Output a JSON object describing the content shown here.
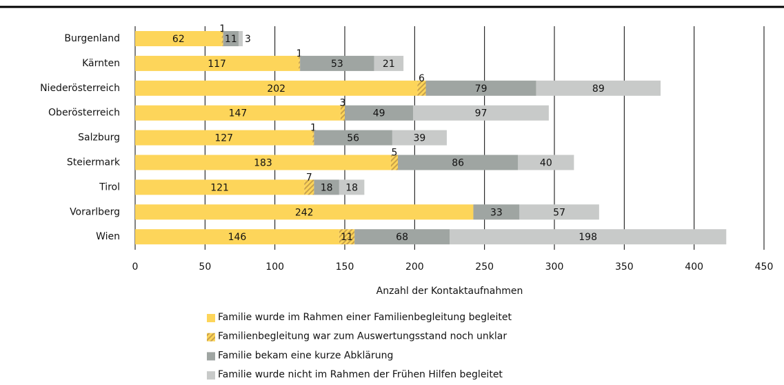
{
  "chart_data": {
    "type": "stacked-bar-horizontal",
    "x_label": "Anzahl der Kontaktaufnahmen",
    "categories": [
      "Burgenland",
      "Kärnten",
      "Niederösterreich",
      "Oberösterreich",
      "Salzburg",
      "Steiermark",
      "Tirol",
      "Vorarlberg",
      "Wien"
    ],
    "series": [
      {
        "name": "Familie wurde im Rahmen einer Familienbegleitung begleitet",
        "color": "#fdd55a",
        "values": [
          62,
          117,
          202,
          147,
          127,
          183,
          121,
          242,
          146
        ]
      },
      {
        "name": "Familienbegleitung war zum Auswertungsstand noch unklar",
        "color": "#fdd55a",
        "hatch": true,
        "values": [
          1,
          1,
          6,
          3,
          1,
          5,
          7,
          null,
          11
        ]
      },
      {
        "name": "Familie bekam eine kurze Abklärung",
        "color": "#9fa5a2",
        "values": [
          11,
          53,
          79,
          49,
          56,
          86,
          18,
          33,
          68
        ]
      },
      {
        "name": "Familie wurde nicht im Rahmen der Frühen Hilfen begleitet",
        "color": "#c8cac9",
        "values": [
          3,
          21,
          89,
          97,
          39,
          40,
          18,
          57,
          198
        ]
      }
    ],
    "xlim": [
      0,
      450
    ],
    "xticks": [
      0,
      50,
      100,
      150,
      200,
      250,
      300,
      350,
      400,
      450
    ],
    "grid": true
  }
}
